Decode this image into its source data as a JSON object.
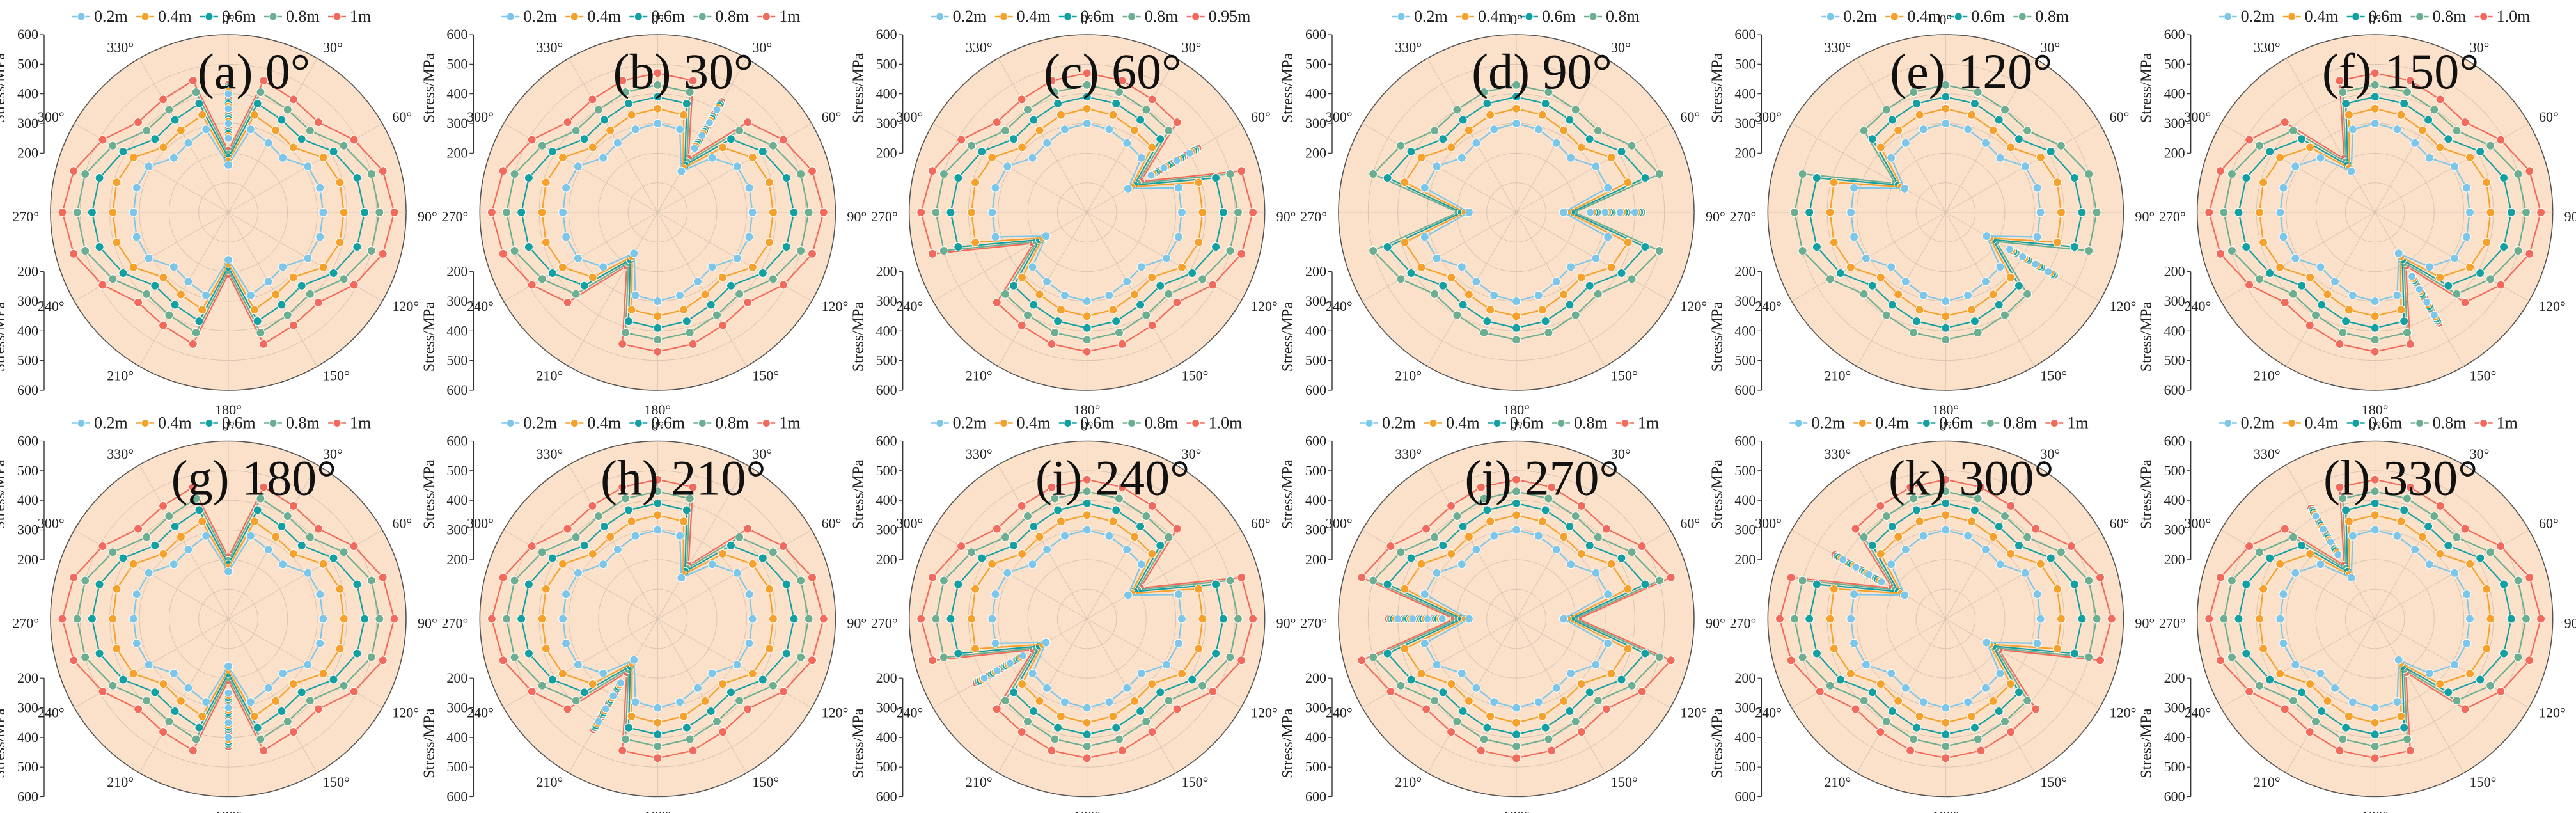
{
  "figure": {
    "legend_labels": [
      "0.2m",
      "0.4m",
      "0.6m",
      "0.8m",
      "1m"
    ],
    "axis_label": "Stress/MPa",
    "radial_ticks": [
      "600",
      "500",
      "400",
      "300",
      "200"
    ],
    "angle_labels": [
      "0°",
      "30°",
      "60°",
      "90°",
      "120°",
      "150°",
      "180°",
      "210°",
      "240°",
      "270°",
      "300°",
      "330°"
    ]
  },
  "colors": {
    "disk": "#fbe1c9",
    "series": [
      "#7cc6ea",
      "#f5a12b",
      "#12a0a2",
      "#6cae92",
      "#f26a5b"
    ]
  },
  "chart_data": [
    {
      "type": "polar-line",
      "title": "(a) 0°",
      "fault_angle": 0,
      "rlim": [
        0,
        600
      ],
      "legend": [
        "0.2m",
        "0.4m",
        "0.6m",
        "0.8m",
        "1m"
      ]
    },
    {
      "type": "polar-line",
      "title": "(b) 30°",
      "fault_angle": 30,
      "rlim": [
        0,
        600
      ],
      "legend": [
        "0.2m",
        "0.4m",
        "0.6m",
        "0.8m",
        "1m"
      ]
    },
    {
      "type": "polar-line",
      "title": "(c) 60°",
      "fault_angle": 60,
      "rlim": [
        0,
        600
      ],
      "legend": [
        "0.2m",
        "0.4m",
        "0.6m",
        "0.8m",
        "0.95m"
      ]
    },
    {
      "type": "polar-line",
      "title": "(d) 90°",
      "fault_angle": 90,
      "rlim": [
        0,
        600
      ],
      "legend": [
        "0.2m",
        "0.4m",
        "0.6m",
        "0.8m"
      ]
    },
    {
      "type": "polar-line",
      "title": "(e) 120°",
      "fault_angle": 120,
      "rlim": [
        0,
        600
      ],
      "legend": [
        "0.2m",
        "0.4m",
        "0.6m",
        "0.8m"
      ]
    },
    {
      "type": "polar-line",
      "title": "(f) 150°",
      "fault_angle": 150,
      "rlim": [
        0,
        600
      ],
      "legend": [
        "0.2m",
        "0.4m",
        "0.6m",
        "0.8m",
        "1.0m"
      ]
    },
    {
      "type": "polar-line",
      "title": "(g) 180°",
      "fault_angle": 180,
      "rlim": [
        0,
        600
      ],
      "legend": [
        "0.2m",
        "0.4m",
        "0.6m",
        "0.8m",
        "1m"
      ]
    },
    {
      "type": "polar-line",
      "title": "(h) 210°",
      "fault_angle": 210,
      "rlim": [
        0,
        600
      ],
      "legend": [
        "0.2m",
        "0.4m",
        "0.6m",
        "0.8m",
        "1m"
      ]
    },
    {
      "type": "polar-line",
      "title": "(i) 240°",
      "fault_angle": 240,
      "rlim": [
        0,
        600
      ],
      "legend": [
        "0.2m",
        "0.4m",
        "0.6m",
        "0.8m",
        "1.0m"
      ]
    },
    {
      "type": "polar-line",
      "title": "(j) 270°",
      "fault_angle": 270,
      "rlim": [
        0,
        600
      ],
      "legend": [
        "0.2m",
        "0.4m",
        "0.6m",
        "0.8m",
        "1m"
      ]
    },
    {
      "type": "polar-line",
      "title": "(k) 300°",
      "fault_angle": 300,
      "rlim": [
        0,
        600
      ],
      "legend": [
        "0.2m",
        "0.4m",
        "0.6m",
        "0.8m",
        "1m"
      ]
    },
    {
      "type": "polar-line",
      "title": "(l) 330°",
      "fault_angle": 330,
      "rlim": [
        0,
        600
      ],
      "legend": [
        "0.2m",
        "0.4m",
        "0.6m",
        "0.8m",
        "1m"
      ]
    }
  ],
  "profile": {
    "angles_deg": [
      0,
      15,
      30,
      45,
      60,
      75,
      90,
      105,
      120,
      135,
      150,
      165,
      180,
      195,
      210,
      225,
      240,
      255,
      270,
      285,
      300,
      315,
      330,
      345
    ],
    "series_stress_mpa": [
      [
        300,
        290,
        270,
        260,
        310,
        320,
        320,
        320,
        310,
        260,
        270,
        290,
        300,
        290,
        270,
        260,
        310,
        320,
        320,
        320,
        310,
        260,
        270,
        290
      ],
      [
        350,
        340,
        320,
        310,
        370,
        390,
        390,
        390,
        370,
        310,
        320,
        340,
        350,
        340,
        320,
        310,
        370,
        390,
        390,
        390,
        370,
        310,
        320,
        340
      ],
      [
        390,
        380,
        360,
        350,
        410,
        450,
        460,
        450,
        410,
        350,
        360,
        380,
        390,
        380,
        360,
        350,
        410,
        450,
        460,
        450,
        410,
        350,
        360,
        380
      ],
      [
        430,
        420,
        400,
        390,
        450,
        500,
        510,
        500,
        450,
        390,
        400,
        420,
        430,
        420,
        400,
        390,
        450,
        500,
        510,
        500,
        450,
        390,
        400,
        420
      ],
      [
        470,
        460,
        440,
        430,
        490,
        540,
        560,
        540,
        490,
        430,
        440,
        460,
        470,
        460,
        440,
        430,
        490,
        540,
        560,
        540,
        490,
        430,
        440,
        460
      ]
    ]
  }
}
